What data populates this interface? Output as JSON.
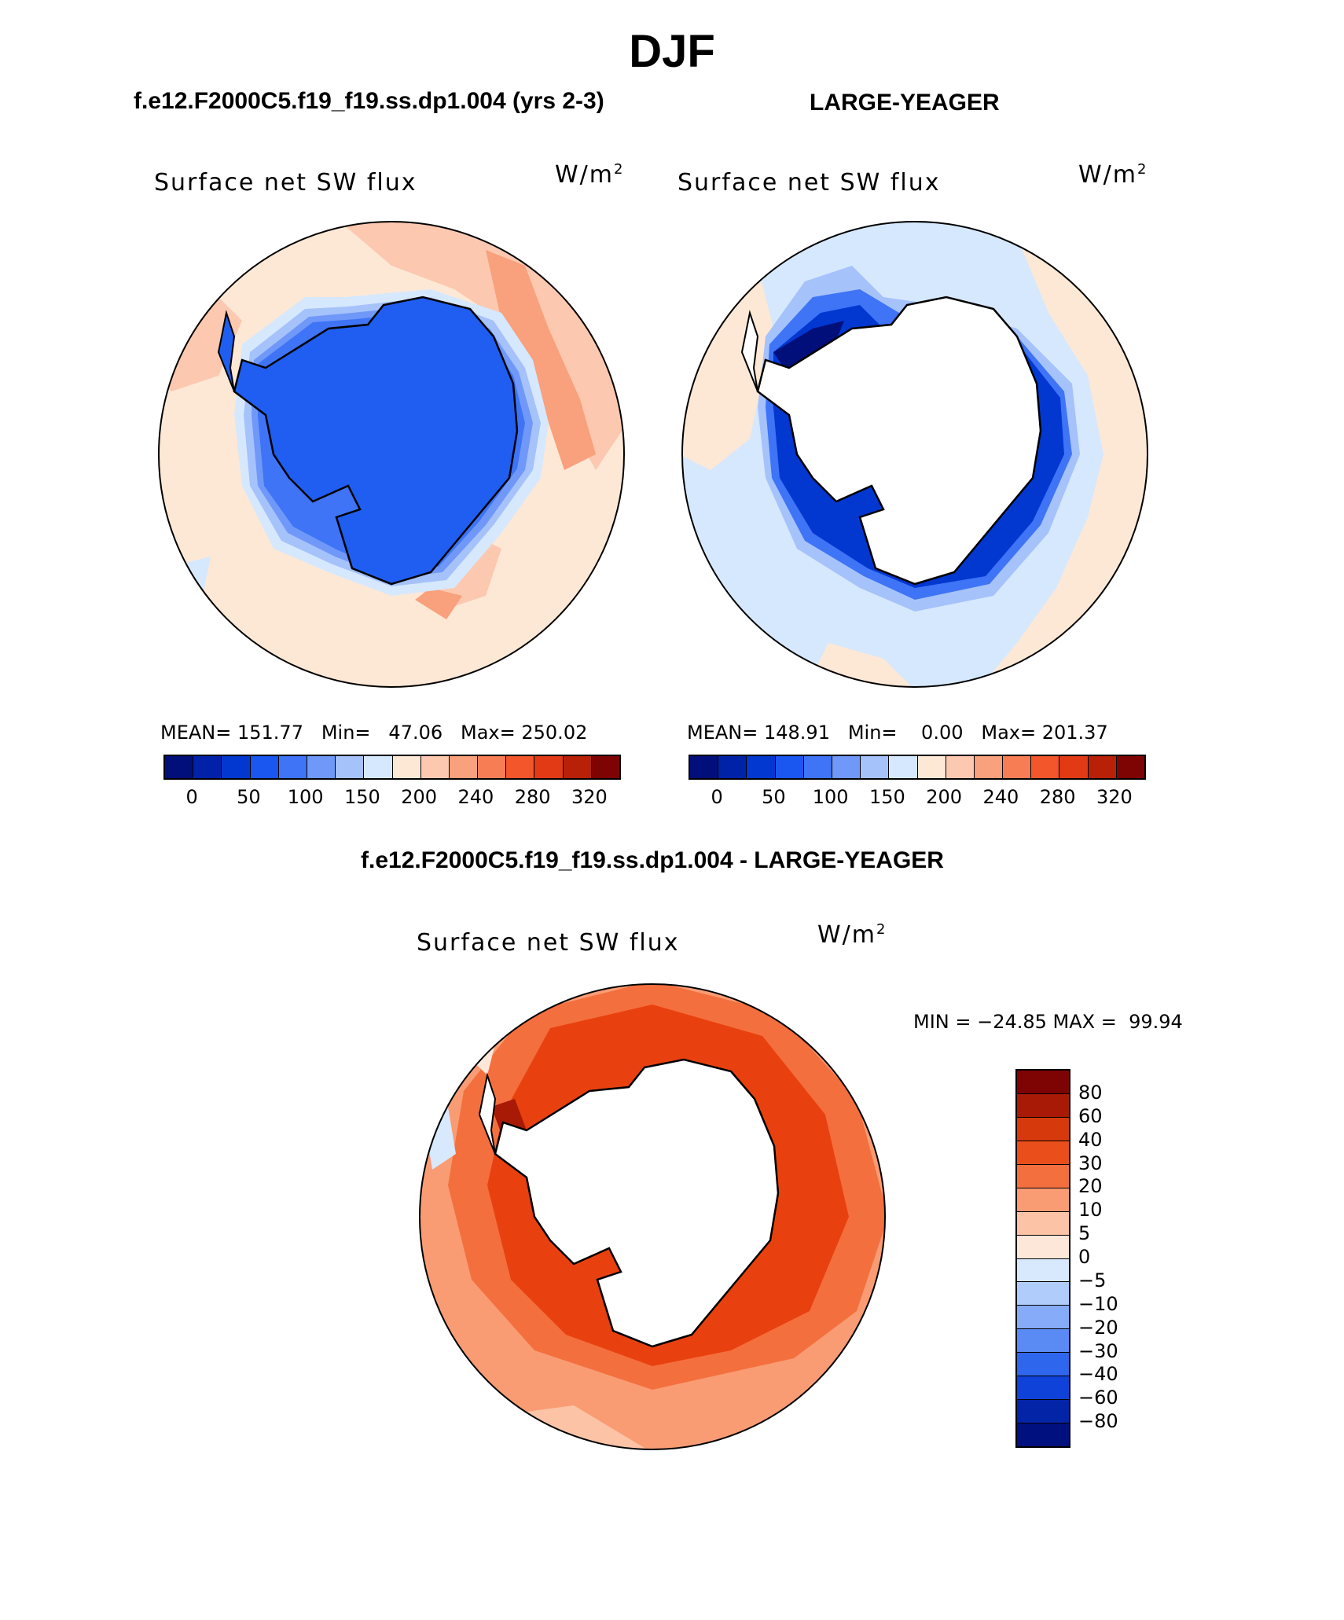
{
  "title": "DJF",
  "panels": {
    "left": {
      "case": "f.e12.F2000C5.f19_f19.ss.dp1.004 (yrs 2-3)",
      "variable": "Surface net SW flux",
      "unit": "W/m",
      "unit_exp": "2",
      "stats": "MEAN= 151.77   Min=   47.06   Max= 250.02"
    },
    "right": {
      "case": "LARGE-YEAGER",
      "variable": "Surface net SW flux",
      "unit": "W/m",
      "unit_exp": "2",
      "stats": "MEAN= 148.91   Min=    0.00   Max= 201.37"
    },
    "diff": {
      "case": "f.e12.F2000C5.f19_f19.ss.dp1.004 - LARGE-YEAGER",
      "variable": "Surface net SW flux",
      "unit": "W/m",
      "unit_exp": "2",
      "stats": "MIN = −24.85 MAX =  99.94"
    }
  },
  "colorbar_abs": {
    "colors": [
      "#000f7a",
      "#0022a8",
      "#0238d0",
      "#1a56f0",
      "#3e74f5",
      "#6f98f8",
      "#a6c2fb",
      "#d6e8fd",
      "#fde8d6",
      "#fcc8b0",
      "#f9a07c",
      "#f77e54",
      "#f2562a",
      "#e23a14",
      "#b82008",
      "#7e0404"
    ],
    "ticks": [
      "0",
      "50",
      "100",
      "150",
      "200",
      "240",
      "280",
      "320"
    ]
  },
  "colorbar_diff": {
    "colors": [
      "#7e0404",
      "#a81a06",
      "#d63a0c",
      "#ea4e1a",
      "#f46f3e",
      "#f99c74",
      "#fcc3a6",
      "#fde7d9",
      "#d8e8fd",
      "#b0ccfb",
      "#86abf8",
      "#5a8af4",
      "#2f66ee",
      "#0f42d8",
      "#0424a8",
      "#00107e"
    ],
    "ticks": [
      "80",
      "60",
      "40",
      "30",
      "20",
      "10",
      "5",
      "0",
      "−5",
      "−10",
      "−20",
      "−30",
      "−40",
      "−60",
      "−80"
    ]
  },
  "maps": {
    "projection": "south-polar stereographic",
    "left_continent_color": "#1f5ef0",
    "ocean_colors_left": [
      "#fde8d6",
      "#fcc8b0",
      "#f9a07c"
    ],
    "ocean_colors_right": [
      "#fde8d6",
      "#d6e8fd",
      "#a6c2fb"
    ],
    "diff_colors": [
      "#e8410f",
      "#f46f3e",
      "#f99c74",
      "#fcc3a6"
    ]
  }
}
